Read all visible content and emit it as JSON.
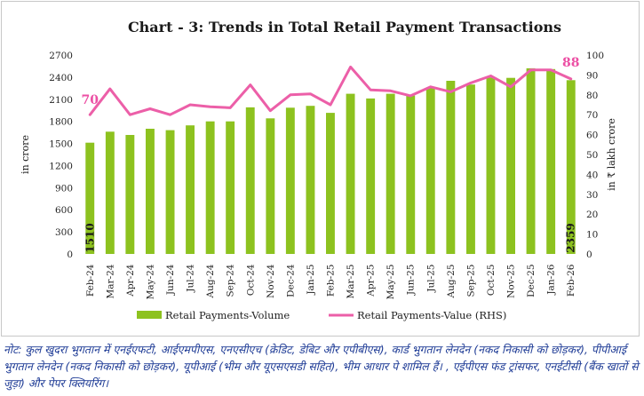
{
  "chart_data": {
    "type": "bar+line",
    "title": "Chart - 3: Trends in Total Retail Payment Transactions",
    "categories": [
      "Feb-24",
      "Mar-24",
      "Apr-24",
      "May-24",
      "Jun-24",
      "Jul-24",
      "Aug-24",
      "Sep-24",
      "Oct-24",
      "Nov-24",
      "Dec-24",
      "Jan-25",
      "Feb-25",
      "Mar-25",
      "Apr-25",
      "May-25",
      "Jun-25",
      "Jul-25",
      "Aug-25",
      "Sep-25",
      "Oct-25",
      "Nov-25",
      "Dec-25",
      "Jan-26",
      "Feb-26"
    ],
    "series": [
      {
        "name": "Retail Payments-Volume",
        "type": "bar",
        "axis": "left",
        "color": "#8dc21f",
        "values": [
          1510,
          1660,
          1615,
          1700,
          1680,
          1745,
          1800,
          1800,
          1990,
          1840,
          1985,
          2010,
          1915,
          2175,
          2110,
          2175,
          2150,
          2260,
          2350,
          2300,
          2395,
          2390,
          2520,
          2510,
          2359
        ]
      },
      {
        "name": "Retail Payments-Value (RHS)",
        "type": "line",
        "axis": "right",
        "color": "#ec5fa8",
        "values": [
          70,
          83,
          70,
          73,
          70,
          75,
          74,
          73.5,
          85,
          72,
          80,
          80.5,
          75,
          94,
          82.5,
          82,
          79.5,
          84,
          81.5,
          86,
          89.5,
          84,
          92.5,
          92.5,
          88
        ]
      }
    ],
    "data_labels": {
      "bar_first": "1510",
      "bar_last": "2359",
      "line_first": "70",
      "line_last": "88"
    },
    "ylabel": "in crore",
    "y2label": "in ₹ lakh crore",
    "ylim": [
      0,
      2700
    ],
    "yticks": [
      "0",
      "300",
      "600",
      "900",
      "1200",
      "1500",
      "1800",
      "2100",
      "2400",
      "2700"
    ],
    "y2lim": [
      0,
      100
    ],
    "y2ticks": [
      "0",
      "10",
      "20",
      "30",
      "40",
      "50",
      "60",
      "70",
      "80",
      "90",
      "100"
    ],
    "grid": false,
    "legend_position": "bottom"
  },
  "note": "नोट: कुल खुदरा भुगतान में एनईएफटी, आईएमपीएस, एनएसीएच (क्रेडिट, डेबिट और एपीबीएस), कार्ड भुगतान लेनदेन (नकद निकासी को छोड़कर), पीपीआई भुगतान लेनदेन (नकद निकासी को छोड़कर), यूपीआई (भीम और यूएसएसडी सहित), भीम आधार पे शामिल हैं। , एईपीएस फंड ट्रांसफर, एनईटीसी (बैंक खातों से जुड़ा) और पेपर क्लियरिंग।"
}
